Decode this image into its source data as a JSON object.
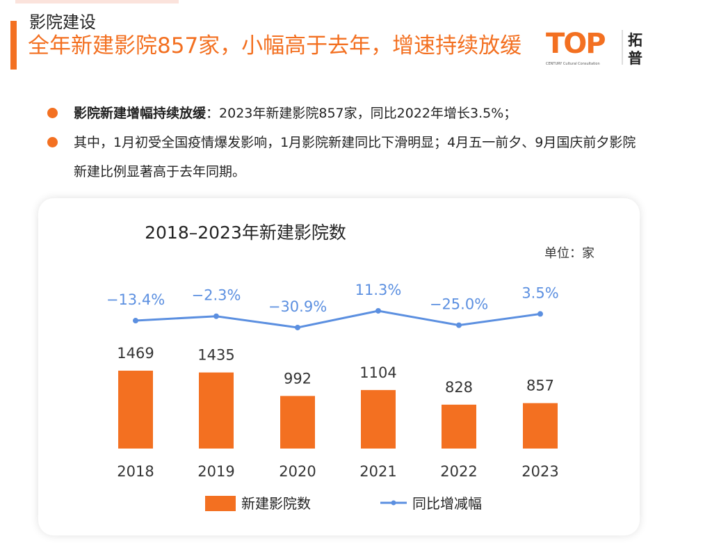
{
  "section_title": "影院建设",
  "headline": "全年新建影院857家，小幅高于去年，增速持续放缓",
  "logo": {
    "text": "TOP",
    "subtext": "CENTURY Cultural Consultation",
    "cn": "拓普"
  },
  "bullets": [
    {
      "bold": "影院新建增幅持续放缓",
      "text": "：2023年新建影院857家，同比2022年增长3.5%；"
    },
    {
      "bold": "",
      "text": "其中，1月初受全国疫情爆发影响，1月影院新建同比下滑明显；4月五一前夕、9月国庆前夕影院新建比例显著高于去年同期。"
    }
  ],
  "colors": {
    "bar": "#f37021",
    "line": "#5b8fe0",
    "accent": "#f37021"
  },
  "chart_data": {
    "type": "bar+line",
    "title": "2018–2023年新建影院数",
    "unit": "单位：家",
    "categories": [
      "2018",
      "2019",
      "2020",
      "2021",
      "2022",
      "2023"
    ],
    "series": [
      {
        "name": "新建影院数",
        "type": "bar",
        "values": [
          1469,
          1435,
          992,
          1104,
          828,
          857
        ],
        "labels": [
          "1469",
          "1435",
          "992",
          "1104",
          "828",
          "857"
        ]
      },
      {
        "name": "同比增减幅",
        "type": "line",
        "values": [
          -13.4,
          -2.3,
          -30.9,
          11.3,
          -25.0,
          3.5
        ],
        "labels": [
          "−13.4%",
          "−2.3%",
          "−30.9%",
          "11.3%",
          "−25.0%",
          "3.5%"
        ]
      }
    ],
    "legend": "bottom",
    "grid": false
  }
}
